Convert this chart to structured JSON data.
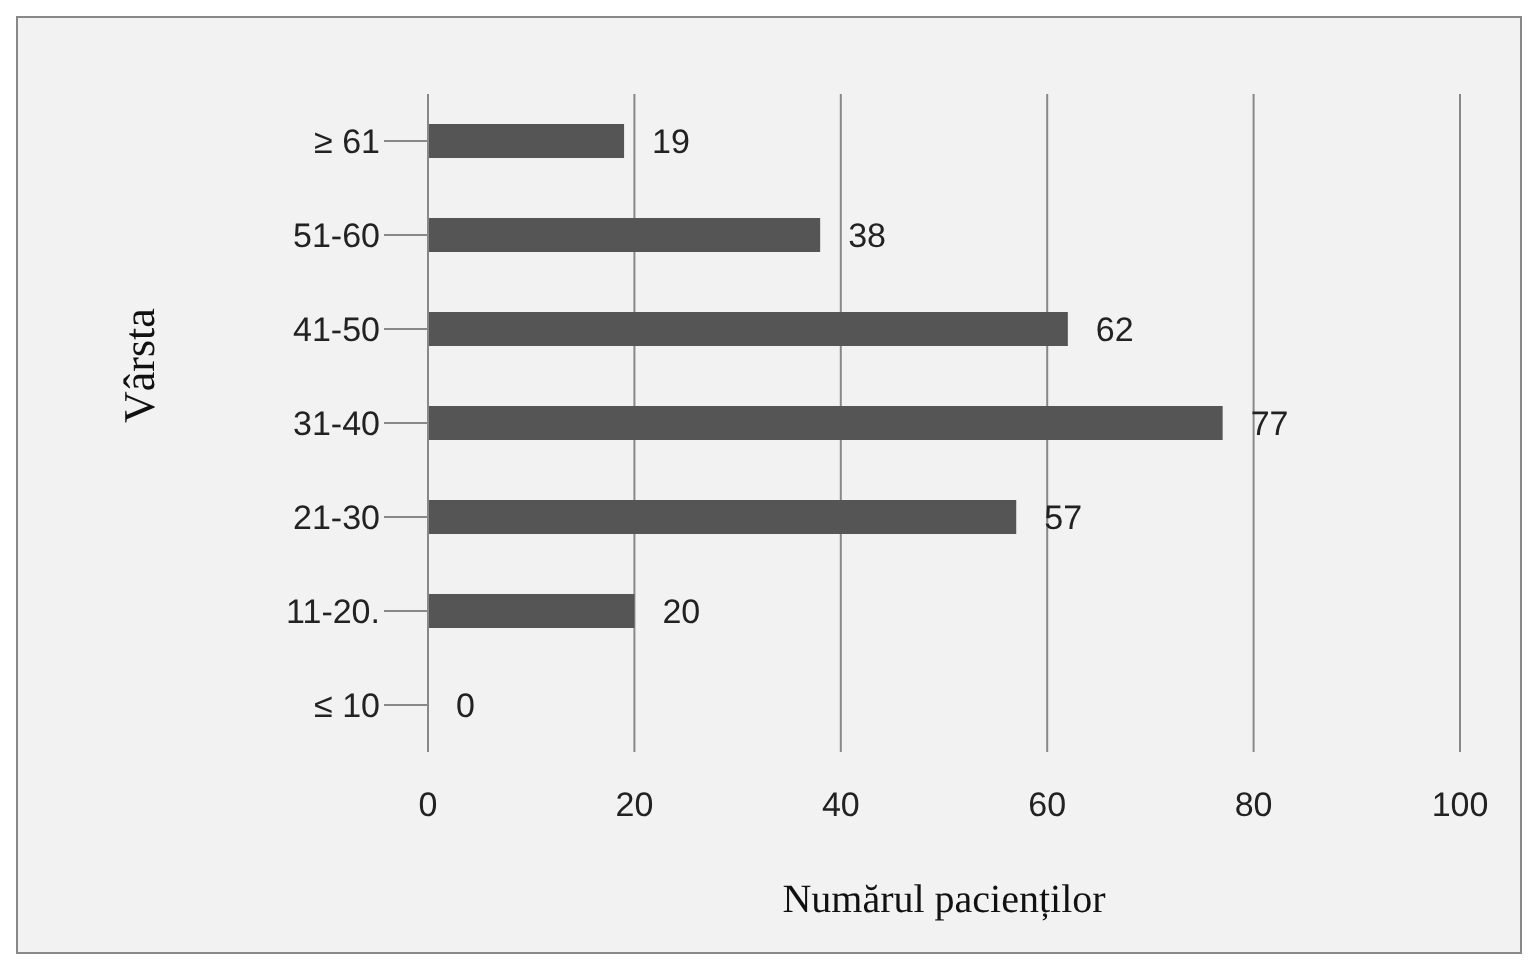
{
  "chart_data": {
    "type": "bar",
    "orientation": "horizontal",
    "categories": [
      "≥ 61",
      "51-60",
      "41-50",
      "31-40",
      "21-30",
      "11-20.",
      "≤ 10"
    ],
    "values": [
      19,
      38,
      62,
      77,
      57,
      20,
      0
    ],
    "color": "#555555",
    "xlim": [
      0,
      100
    ],
    "xticks": [
      0,
      20,
      40,
      60,
      80,
      100
    ],
    "grid": "x",
    "data_labels": true,
    "xlabel": "Numărul pacienților",
    "ylabel": "Vârsta"
  }
}
